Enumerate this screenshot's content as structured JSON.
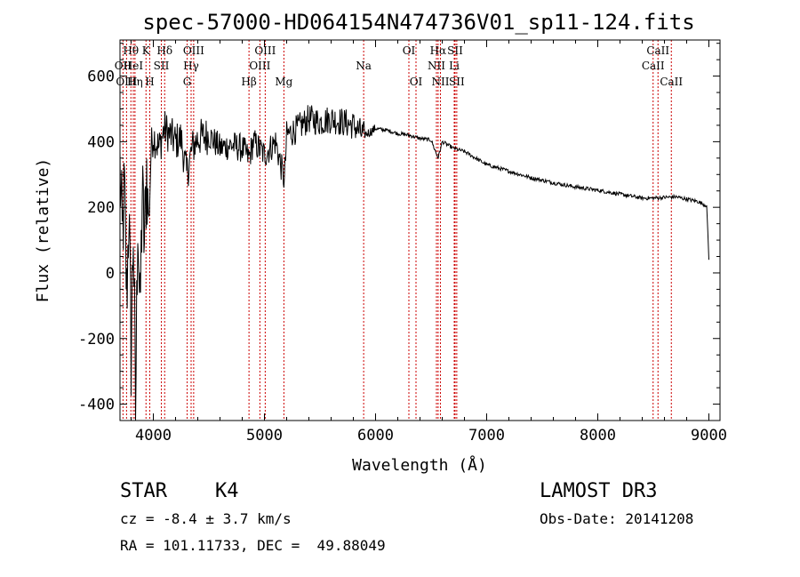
{
  "chart_data": {
    "type": "line",
    "title": "spec-57000-HD064154N474736V01_sp11-124.fits",
    "xlabel": "Wavelength (Å)",
    "ylabel": "Flux (relative)",
    "xlim": [
      3700,
      9100
    ],
    "ylim": [
      -450,
      710
    ],
    "xticks": [
      4000,
      5000,
      6000,
      7000,
      8000,
      9000
    ],
    "yticks": [
      -400,
      -200,
      0,
      200,
      400,
      600
    ],
    "grid": false,
    "series": [
      {
        "name": "flux",
        "x": [
          3700,
          3720,
          3740,
          3760,
          3780,
          3800,
          3820,
          3840,
          3860,
          3880,
          3900,
          3920,
          3940,
          3960,
          3980,
          4000,
          4050,
          4100,
          4150,
          4200,
          4250,
          4300,
          4350,
          4400,
          4500,
          4600,
          4700,
          4800,
          4860,
          4900,
          5000,
          5100,
          5180,
          5200,
          5300,
          5400,
          5500,
          5600,
          5700,
          5800,
          5890,
          5950,
          6000,
          6100,
          6200,
          6300,
          6400,
          6500,
          6563,
          6600,
          6700,
          6800,
          6900,
          7000,
          7200,
          7400,
          7600,
          7800,
          8000,
          8200,
          8400,
          8500,
          8600,
          8700,
          8800,
          8900,
          8980,
          9000
        ],
        "y": [
          320,
          100,
          250,
          -80,
          200,
          -250,
          150,
          -450,
          200,
          -150,
          250,
          80,
          320,
          150,
          380,
          420,
          380,
          440,
          420,
          400,
          410,
          300,
          380,
          410,
          420,
          380,
          390,
          380,
          350,
          400,
          360,
          400,
          280,
          420,
          440,
          470,
          460,
          470,
          460,
          450,
          420,
          430,
          440,
          435,
          425,
          420,
          410,
          405,
          350,
          400,
          380,
          370,
          350,
          330,
          310,
          290,
          275,
          262,
          252,
          240,
          228,
          228,
          230,
          232,
          225,
          218,
          205,
          40
        ]
      }
    ],
    "lines": [
      {
        "name": "Hθ",
        "x": 3798,
        "row": 1
      },
      {
        "name": "OII",
        "x": 3727,
        "row": 2
      },
      {
        "name": "OIII",
        "x": 3759,
        "row": 3
      },
      {
        "name": "HeI",
        "x": 3820,
        "row": 2
      },
      {
        "name": "Hη",
        "x": 3835,
        "row": 3
      },
      {
        "name": "K",
        "x": 3934,
        "row": 1
      },
      {
        "name": "SII",
        "x": 4072,
        "row": 2
      },
      {
        "name": "H",
        "x": 3968,
        "row": 3
      },
      {
        "name": "Hδ",
        "x": 4102,
        "row": 1
      },
      {
        "name": "OIII",
        "x": 4363,
        "row": 1
      },
      {
        "name": "Hγ",
        "x": 4340,
        "row": 2
      },
      {
        "name": "G",
        "x": 4304,
        "row": 3
      },
      {
        "name": "Hβ",
        "x": 4861,
        "row": 3
      },
      {
        "name": "OIII",
        "x": 5007,
        "row": 1
      },
      {
        "name": "OIII",
        "x": 4959,
        "row": 2
      },
      {
        "name": "Mg",
        "x": 5175,
        "row": 3
      },
      {
        "name": "Na",
        "x": 5893,
        "row": 2
      },
      {
        "name": "OI",
        "x": 6300,
        "row": 1
      },
      {
        "name": "OI",
        "x": 6364,
        "row": 3
      },
      {
        "name": "Hα",
        "x": 6563,
        "row": 1
      },
      {
        "name": "SII",
        "x": 6716,
        "row": 1
      },
      {
        "name": "NII",
        "x": 6548,
        "row": 2
      },
      {
        "name": "Li",
        "x": 6708,
        "row": 2
      },
      {
        "name": "NII",
        "x": 6584,
        "row": 3
      },
      {
        "name": "SII",
        "x": 6731,
        "row": 3
      },
      {
        "name": "CaII",
        "x": 8542,
        "row": 1
      },
      {
        "name": "CaII",
        "x": 8498,
        "row": 2
      },
      {
        "name": "CaII",
        "x": 8662,
        "row": 3
      }
    ]
  },
  "info": {
    "object_type": "STAR",
    "subclass": "K4",
    "cz": "cz = -8.4 ± 3.7 km/s",
    "coords": "RA = 101.11733, DEC =  49.88049",
    "survey": "LAMOST DR3",
    "obs_date": "Obs-Date: 20141208"
  }
}
